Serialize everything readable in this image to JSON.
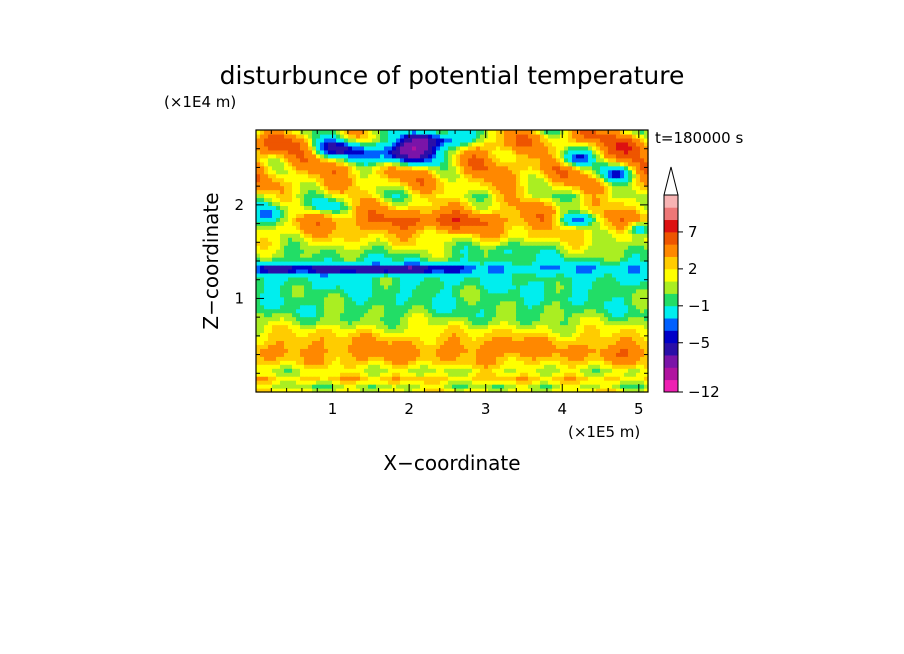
{
  "chart_data": {
    "type": "heatmap",
    "title": "disturbunce of potential temperature",
    "xlabel": "X−coordinate",
    "ylabel": "Z−coordinate",
    "x_multiplier": "(×1E5 m)",
    "y_multiplier": "(×1E4 m)",
    "time_label": "t=180000 s",
    "x_ticks": [
      {
        "value": 1,
        "label": "1"
      },
      {
        "value": 2,
        "label": "2"
      },
      {
        "value": 3,
        "label": "3"
      },
      {
        "value": 4,
        "label": "4"
      },
      {
        "value": 5,
        "label": "5"
      }
    ],
    "y_ticks": [
      {
        "value": 1,
        "label": "1"
      },
      {
        "value": 2,
        "label": "2"
      }
    ],
    "xlim": [
      0,
      5.12
    ],
    "ylim": [
      0,
      2.8
    ],
    "colorbar": {
      "levels": [
        -12,
        -11,
        -9,
        -7,
        -5,
        -4,
        -3,
        -1,
        0,
        1,
        2,
        3,
        5,
        7,
        9,
        11
      ],
      "colors": [
        "#ee1fb2",
        "#b0139f",
        "#7a14a8",
        "#2a0fa8",
        "#0000c8",
        "#0060ff",
        "#00eeee",
        "#22dd66",
        "#aaee22",
        "#ffff00",
        "#ffcc00",
        "#ff8800",
        "#ee5500",
        "#dd1111",
        "#ee7777",
        "#f7b3b3"
      ],
      "tick_labels": [
        {
          "value": 7,
          "label": "7"
        },
        {
          "value": 2,
          "label": "2"
        },
        {
          "value": -1,
          "label": "−1"
        },
        {
          "value": -5,
          "label": "−5"
        },
        {
          "value": -12,
          "label": "−12"
        }
      ],
      "extend": "max"
    },
    "bands": [
      {
        "z": 0.0,
        "v": 1.8
      },
      {
        "z": 0.07,
        "v": 0.4
      },
      {
        "z": 0.14,
        "v": 2.6
      },
      {
        "z": 0.22,
        "v": 0.8
      },
      {
        "z": 0.32,
        "v": 2.2
      },
      {
        "z": 0.45,
        "v": 3.3
      },
      {
        "z": 0.58,
        "v": 2.5
      },
      {
        "z": 0.68,
        "v": 1.4
      },
      {
        "z": 0.76,
        "v": 0.3
      },
      {
        "z": 0.86,
        "v": -0.3
      },
      {
        "z": 0.96,
        "v": -0.6
      },
      {
        "z": 1.1,
        "v": -0.8
      },
      {
        "z": 1.24,
        "v": -1.2
      },
      {
        "z": 1.32,
        "v": -3.0
      },
      {
        "z": 1.4,
        "v": -0.8
      },
      {
        "z": 1.5,
        "v": 0.2
      },
      {
        "z": 1.62,
        "v": 1.6
      },
      {
        "z": 1.74,
        "v": 2.7
      },
      {
        "z": 1.86,
        "v": 3.8
      },
      {
        "z": 1.98,
        "v": 2.4
      },
      {
        "z": 2.1,
        "v": 1.2
      },
      {
        "z": 2.24,
        "v": 2.6
      },
      {
        "z": 2.4,
        "v": 3.4
      },
      {
        "z": 2.58,
        "v": 2.0
      },
      {
        "z": 2.8,
        "v": 1.0
      }
    ],
    "blobs": [
      {
        "x": 1.9,
        "z": 2.55,
        "sx": 0.55,
        "sz": 0.13,
        "a": -9.0
      },
      {
        "x": 2.35,
        "z": 2.7,
        "sx": 0.45,
        "sz": 0.1,
        "a": -7.0
      },
      {
        "x": 1.05,
        "z": 2.6,
        "sx": 0.35,
        "sz": 0.1,
        "a": -5.0
      },
      {
        "x": 0.25,
        "z": 2.65,
        "sx": 0.35,
        "sz": 0.12,
        "a": 4.5
      },
      {
        "x": 0.2,
        "z": 1.9,
        "sx": 0.3,
        "sz": 0.12,
        "a": -6.5
      },
      {
        "x": 0.95,
        "z": 2.0,
        "sx": 0.25,
        "sz": 0.08,
        "a": -4.0
      },
      {
        "x": 4.2,
        "z": 1.85,
        "sx": 0.25,
        "sz": 0.08,
        "a": -7.0
      },
      {
        "x": 4.15,
        "z": 2.5,
        "sx": 0.22,
        "sz": 0.1,
        "a": -5.5
      },
      {
        "x": 4.7,
        "z": 2.35,
        "sx": 0.25,
        "sz": 0.1,
        "a": -5.5
      },
      {
        "x": 5.0,
        "z": 1.75,
        "sx": 0.18,
        "sz": 0.08,
        "a": -5.5
      },
      {
        "x": 4.9,
        "z": 2.65,
        "sx": 0.25,
        "sz": 0.12,
        "a": 5.5
      },
      {
        "x": 4.3,
        "z": 2.75,
        "sx": 0.3,
        "sz": 0.1,
        "a": 4.0
      },
      {
        "x": 3.2,
        "z": 2.65,
        "sx": 0.4,
        "sz": 0.12,
        "a": 3.5
      },
      {
        "x": 1.5,
        "z": 1.32,
        "sx": 1.1,
        "sz": 0.05,
        "a": -4.5
      },
      {
        "x": 0.25,
        "z": 1.32,
        "sx": 0.2,
        "sz": 0.05,
        "a": -3.0
      },
      {
        "x": 2.3,
        "z": 1.82,
        "sx": 0.9,
        "sz": 0.1,
        "a": 2.2
      },
      {
        "x": 3.4,
        "z": 1.55,
        "sx": 0.6,
        "sz": 0.08,
        "a": -1.3
      },
      {
        "x": 3.3,
        "z": 0.45,
        "sx": 0.35,
        "sz": 0.1,
        "a": 1.5
      },
      {
        "x": 1.6,
        "z": 0.4,
        "sx": 0.45,
        "sz": 0.1,
        "a": 1.3
      },
      {
        "x": 4.8,
        "z": 0.4,
        "sx": 0.3,
        "sz": 0.1,
        "a": 1.5
      }
    ]
  }
}
